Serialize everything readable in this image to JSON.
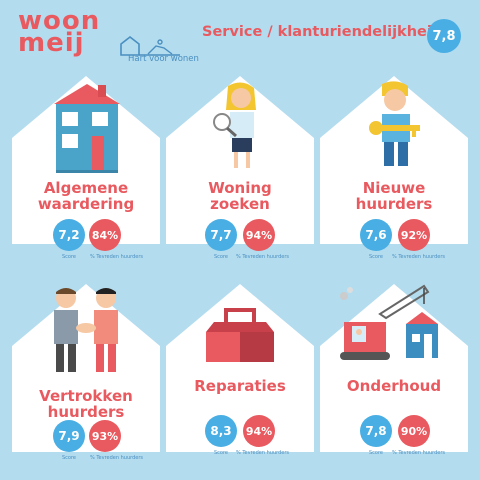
{
  "brand": {
    "line1": "woon",
    "line2": "meij",
    "tagline": "Hart voor wonen"
  },
  "header": {
    "title": "Service / klanturiendelijkheid",
    "score": "7,8"
  },
  "colors": {
    "background": "#b3dcef",
    "accent_red": "#e85a5f",
    "accent_blue": "#49aee3"
  },
  "labels": {
    "score": "Score",
    "pct": "% Tevreden huurders"
  },
  "cards": [
    {
      "title_l1": "Algemene",
      "title_l2": "waardering",
      "score": "7,2",
      "pct": "84%",
      "icon": "house-icon"
    },
    {
      "title_l1": "Woning",
      "title_l2": "zoeken",
      "score": "7,7",
      "pct": "94%",
      "icon": "woman-magnifier-icon"
    },
    {
      "title_l1": "Nieuwe",
      "title_l2": "huurders",
      "score": "7,6",
      "pct": "92%",
      "icon": "man-key-icon"
    },
    {
      "title_l1": "Vertrokken",
      "title_l2": "huurders",
      "score": "7,9",
      "pct": "93%",
      "icon": "handshake-icon"
    },
    {
      "title_l1": "Reparaties",
      "title_l2": "",
      "score": "8,3",
      "pct": "94%",
      "icon": "toolbox-icon"
    },
    {
      "title_l1": "Onderhoud",
      "title_l2": "",
      "score": "7,8",
      "pct": "90%",
      "icon": "crane-icon"
    }
  ]
}
